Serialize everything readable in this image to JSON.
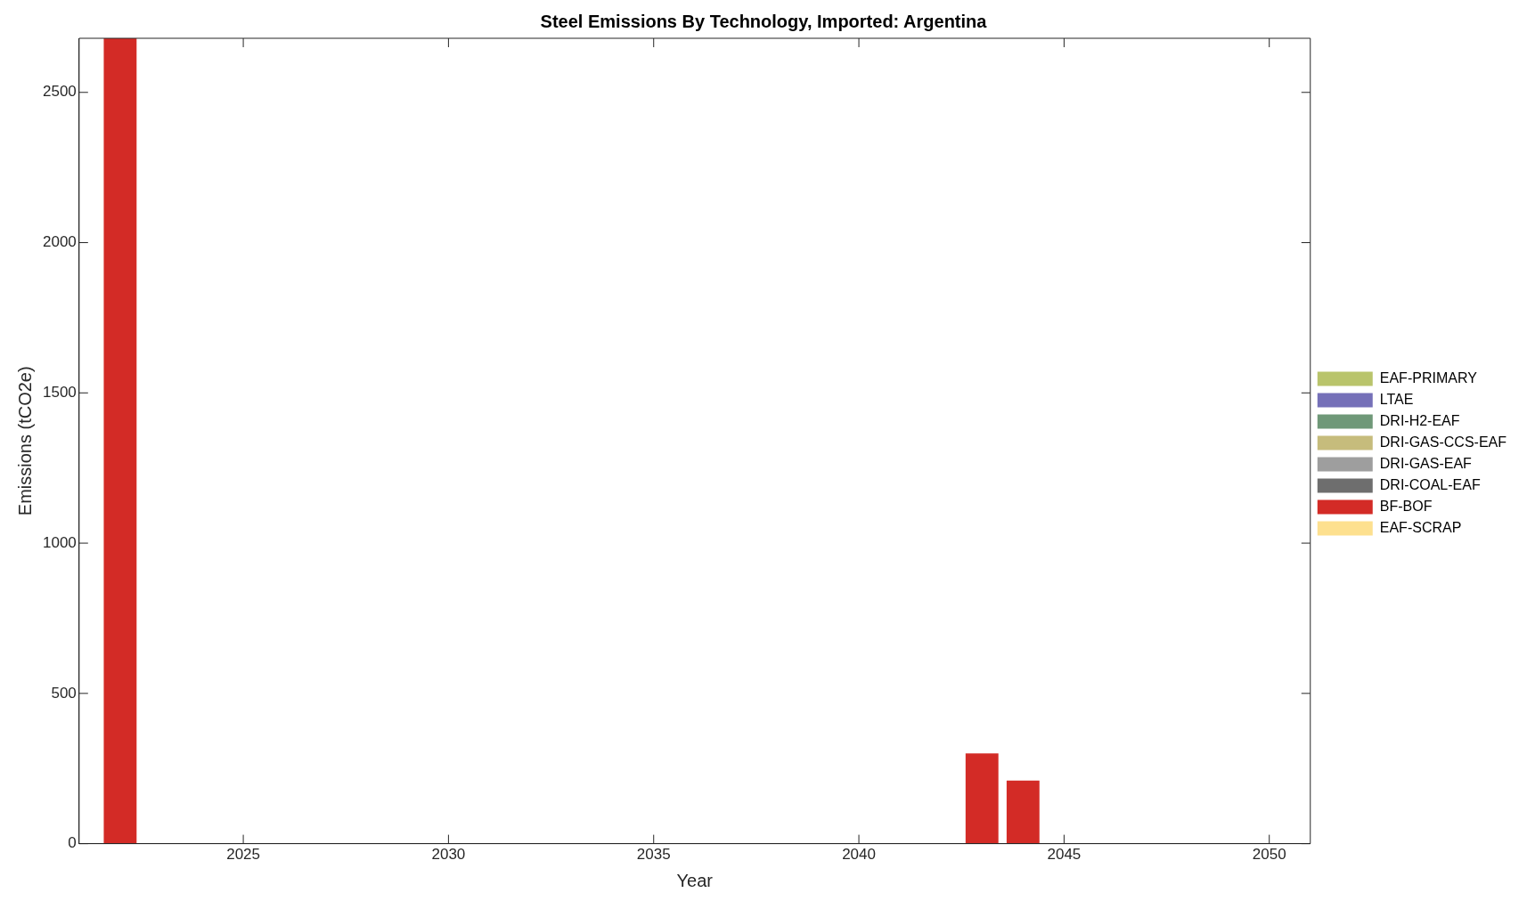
{
  "chart_data": {
    "type": "bar",
    "title": "Steel Emissions By Technology, Imported: Argentina",
    "xlabel": "Year",
    "ylabel": "Emissions (tCO2e)",
    "stacked": true,
    "legend": "right",
    "grid": false,
    "x": [
      2022,
      2023,
      2024,
      2025,
      2026,
      2027,
      2028,
      2029,
      2030,
      2031,
      2032,
      2033,
      2034,
      2035,
      2036,
      2037,
      2038,
      2039,
      2040,
      2041,
      2042,
      2043,
      2044,
      2045,
      2046,
      2047,
      2048,
      2049,
      2050
    ],
    "xlim": [
      2021,
      2051
    ],
    "xticks": [
      2025,
      2030,
      2035,
      2040,
      2045,
      2050
    ],
    "ylim": [
      0,
      2680
    ],
    "yticks": [
      0,
      500,
      1000,
      1500,
      2000,
      2500
    ],
    "series": [
      {
        "name": "EAF-SCRAP",
        "color": "#fde08f",
        "values": [
          0,
          0,
          0,
          0,
          0,
          0,
          0,
          0,
          0,
          0,
          0,
          0,
          0,
          0,
          0,
          0,
          0,
          0,
          0,
          0,
          0,
          0,
          0,
          0,
          0,
          0,
          0,
          0,
          0
        ]
      },
      {
        "name": "BF-BOF",
        "color": "#d32b26",
        "values": [
          2680,
          0,
          0,
          0,
          0,
          0,
          0,
          0,
          0,
          0,
          0,
          0,
          0,
          0,
          0,
          0,
          0,
          0,
          0,
          0,
          0,
          300,
          210,
          0,
          0,
          0,
          0,
          0,
          0
        ]
      },
      {
        "name": "DRI-COAL-EAF",
        "color": "#6e6e6e",
        "values": [
          0,
          0,
          0,
          0,
          0,
          0,
          0,
          0,
          0,
          0,
          0,
          0,
          0,
          0,
          0,
          0,
          0,
          0,
          0,
          0,
          0,
          0,
          0,
          0,
          0,
          0,
          0,
          0,
          0
        ]
      },
      {
        "name": "DRI-GAS-EAF",
        "color": "#9e9e9e",
        "values": [
          0,
          0,
          0,
          0,
          0,
          0,
          0,
          0,
          0,
          0,
          0,
          0,
          0,
          0,
          0,
          0,
          0,
          0,
          0,
          0,
          0,
          0,
          0,
          0,
          0,
          0,
          0,
          0,
          0
        ]
      },
      {
        "name": "DRI-GAS-CCS-EAF",
        "color": "#c6bc7c",
        "values": [
          0,
          0,
          0,
          0,
          0,
          0,
          0,
          0,
          0,
          0,
          0,
          0,
          0,
          0,
          0,
          0,
          0,
          0,
          0,
          0,
          0,
          0,
          0,
          0,
          0,
          0,
          0,
          0,
          0
        ]
      },
      {
        "name": "DRI-H2-EAF",
        "color": "#6f9878",
        "values": [
          0,
          0,
          0,
          0,
          0,
          0,
          0,
          0,
          0,
          0,
          0,
          0,
          0,
          0,
          0,
          0,
          0,
          0,
          0,
          0,
          0,
          0,
          0,
          0,
          0,
          0,
          0,
          0,
          0
        ]
      },
      {
        "name": "LTAE",
        "color": "#7570b8",
        "values": [
          0,
          0,
          0,
          0,
          0,
          0,
          0,
          0,
          0,
          0,
          0,
          0,
          0,
          0,
          0,
          0,
          0,
          0,
          0,
          0,
          0,
          0,
          0,
          0,
          0,
          0,
          0,
          0,
          0
        ]
      },
      {
        "name": "EAF-PRIMARY",
        "color": "#b9c46b",
        "values": [
          0,
          0,
          0,
          0,
          0,
          0,
          0,
          0,
          0,
          0,
          0,
          0,
          0,
          0,
          0,
          0,
          0,
          0,
          0,
          0,
          0,
          0,
          0,
          0,
          0,
          0,
          0,
          0,
          0
        ]
      }
    ]
  }
}
